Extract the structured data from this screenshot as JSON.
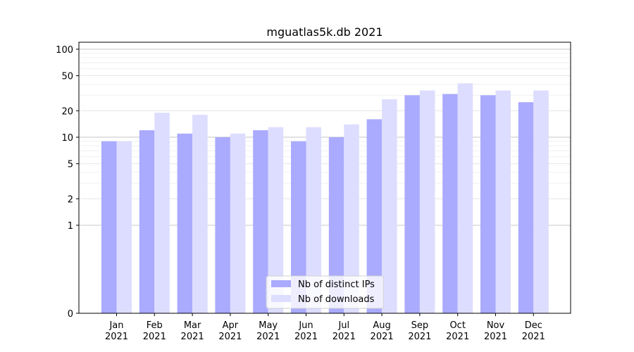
{
  "chart_data": {
    "type": "bar",
    "title": "mguatlas5k.db 2021",
    "xlabel": "",
    "ylabel": "",
    "yscale": "symlog",
    "ylim": [
      0,
      120
    ],
    "yticks": [
      0,
      1,
      2,
      5,
      10,
      20,
      50,
      100
    ],
    "grid": true,
    "legend_position": "bottom-center",
    "categories": [
      "Jan\n2021",
      "Feb\n2021",
      "Mar\n2021",
      "Apr\n2021",
      "May\n2021",
      "Jun\n2021",
      "Jul\n2021",
      "Aug\n2021",
      "Sep\n2021",
      "Oct\n2021",
      "Nov\n2021",
      "Dec\n2021"
    ],
    "series": [
      {
        "name": "Nb of distinct IPs",
        "color": "#aaaaff",
        "values": [
          9,
          12,
          11,
          10,
          12,
          9,
          10,
          16,
          30,
          31,
          30,
          25
        ]
      },
      {
        "name": "Nb of downloads",
        "color": "#ddddff",
        "values": [
          9,
          19,
          18,
          11,
          13,
          13,
          14,
          27,
          34,
          41,
          34,
          34
        ]
      }
    ]
  }
}
